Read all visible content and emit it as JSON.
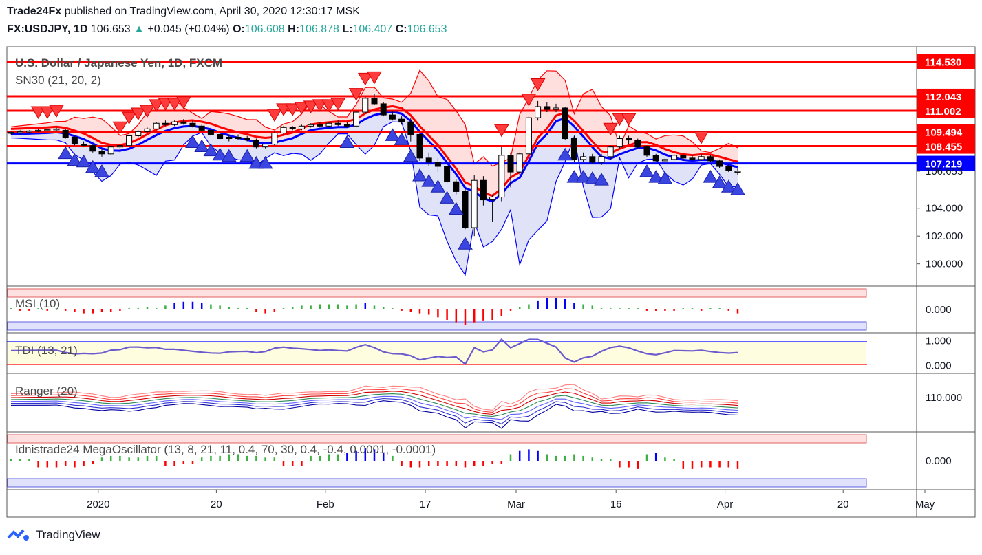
{
  "header": {
    "publisher": "Trade24Fx",
    "published_text": "published on TradingView.com, April 30, 2020 12:30:17 MSK",
    "symbol": "FX:USDJPY, 1D",
    "last": "106.653",
    "change": "+0.045 (+0.04%)",
    "o_label": "O:",
    "o": "106.608",
    "h_label": "H:",
    "h": "106.878",
    "l_label": "L:",
    "l": "106.407",
    "c_label": "C:",
    "c": "106.653"
  },
  "footer": {
    "brand": "TradingView"
  },
  "colors": {
    "red": "#ff0000",
    "blue": "#0000ff",
    "up_green": "#26a69a",
    "tri_red": "#ff3b3b",
    "tri_blue": "#3b45e0",
    "cloud_red": "#ffd6d6",
    "cloud_blue": "#d8dbf5"
  },
  "chart_data": {
    "type": "candlestick",
    "main": {
      "title": "U.S. Dollar / Japanese Yen, 1D, FXCM",
      "indicator": "SN30 (21, 20, 2)",
      "ylim": [
        98.6,
        115.4
      ],
      "y_ticks": [
        "100.000",
        "102.000",
        "104.000",
        "106.653"
      ],
      "levels": [
        {
          "value": 114.53,
          "label": "114.530",
          "color": "#ff0000"
        },
        {
          "value": 112.043,
          "label": "112.043",
          "color": "#ff0000"
        },
        {
          "value": 111.002,
          "label": "111.002",
          "color": "#ff0000"
        },
        {
          "value": 109.494,
          "label": "109.494",
          "color": "#ff0000"
        },
        {
          "value": 108.455,
          "label": "108.455",
          "color": "#ff0000"
        },
        {
          "value": 107.219,
          "label": "107.219",
          "color": "#0000ff"
        }
      ],
      "candles": [
        [
          109.4,
          109.5,
          109.3,
          109.45
        ],
        [
          109.45,
          109.6,
          109.3,
          109.5
        ],
        [
          109.5,
          109.6,
          109.4,
          109.55
        ],
        [
          109.55,
          109.7,
          109.45,
          109.6
        ],
        [
          109.6,
          109.7,
          109.5,
          109.65
        ],
        [
          109.65,
          109.8,
          109.55,
          109.7
        ],
        [
          109.6,
          109.7,
          109.0,
          109.1
        ],
        [
          109.1,
          109.2,
          108.5,
          108.6
        ],
        [
          108.6,
          108.8,
          108.4,
          108.5
        ],
        [
          108.5,
          108.6,
          108.0,
          108.1
        ],
        [
          108.1,
          108.3,
          107.7,
          107.9
        ],
        [
          107.9,
          108.5,
          107.8,
          108.4
        ],
        [
          108.4,
          108.6,
          108.0,
          108.5
        ],
        [
          108.5,
          109.3,
          108.3,
          109.2
        ],
        [
          109.2,
          109.6,
          109.1,
          109.5
        ],
        [
          109.5,
          109.8,
          109.4,
          109.7
        ],
        [
          109.7,
          110.2,
          109.6,
          110.1
        ],
        [
          110.1,
          110.3,
          109.9,
          110.0
        ],
        [
          110.0,
          110.3,
          109.9,
          110.2
        ],
        [
          110.2,
          110.4,
          110.0,
          110.1
        ],
        [
          110.1,
          110.3,
          109.8,
          109.9
        ],
        [
          109.9,
          110.0,
          109.5,
          109.6
        ],
        [
          109.6,
          109.8,
          109.2,
          109.3
        ],
        [
          109.3,
          109.5,
          108.9,
          109.0
        ],
        [
          109.0,
          109.3,
          108.8,
          109.1
        ],
        [
          109.1,
          109.3,
          108.9,
          109.0
        ],
        [
          109.0,
          109.2,
          108.8,
          108.9
        ],
        [
          108.9,
          109.0,
          108.3,
          108.4
        ],
        [
          108.4,
          108.6,
          108.3,
          108.6
        ],
        [
          108.6,
          109.5,
          108.5,
          109.4
        ],
        [
          109.4,
          109.9,
          109.3,
          109.8
        ],
        [
          109.8,
          109.9,
          109.6,
          109.7
        ],
        [
          109.7,
          110.0,
          109.6,
          109.9
        ],
        [
          109.9,
          110.1,
          109.8,
          110.0
        ],
        [
          110.0,
          110.2,
          109.8,
          109.9
        ],
        [
          109.9,
          110.2,
          109.8,
          110.1
        ],
        [
          110.1,
          110.3,
          109.9,
          110.0
        ],
        [
          110.0,
          110.2,
          109.8,
          109.9
        ],
        [
          109.9,
          111.0,
          109.8,
          110.9
        ],
        [
          110.9,
          112.1,
          110.8,
          111.9
        ],
        [
          111.9,
          112.2,
          111.4,
          111.5
        ],
        [
          111.5,
          111.6,
          110.6,
          110.7
        ],
        [
          110.7,
          111.0,
          110.3,
          110.4
        ],
        [
          110.4,
          110.6,
          110.0,
          110.2
        ],
        [
          110.2,
          110.5,
          108.8,
          109.3
        ],
        [
          109.3,
          109.4,
          107.4,
          107.6
        ],
        [
          107.6,
          108.0,
          107.0,
          107.3
        ],
        [
          107.3,
          107.6,
          106.6,
          107.0
        ],
        [
          107.0,
          107.4,
          105.8,
          105.9
        ],
        [
          105.9,
          106.1,
          105.0,
          105.2
        ],
        [
          105.2,
          105.4,
          102.5,
          102.6
        ],
        [
          102.6,
          106.4,
          102.0,
          106.0
        ],
        [
          106.0,
          106.3,
          104.2,
          104.6
        ],
        [
          104.6,
          105.0,
          103.0,
          104.8
        ],
        [
          104.8,
          108.4,
          104.5,
          107.8
        ],
        [
          107.8,
          108.0,
          105.5,
          106.6
        ],
        [
          106.6,
          108.0,
          106.4,
          107.9
        ],
        [
          107.9,
          110.6,
          107.8,
          110.5
        ],
        [
          110.5,
          111.7,
          110.3,
          111.3
        ],
        [
          111.3,
          111.6,
          110.9,
          111.1
        ],
        [
          111.1,
          111.5,
          110.9,
          111.2
        ],
        [
          111.2,
          111.3,
          108.9,
          109.0
        ],
        [
          109.0,
          109.2,
          107.3,
          107.5
        ],
        [
          107.5,
          108.0,
          107.3,
          107.7
        ],
        [
          107.7,
          107.9,
          107.2,
          107.3
        ],
        [
          107.3,
          107.9,
          107.1,
          107.7
        ],
        [
          107.7,
          108.5,
          107.5,
          108.4
        ],
        [
          108.4,
          109.2,
          108.3,
          109.0
        ],
        [
          109.0,
          109.2,
          108.6,
          108.9
        ],
        [
          108.9,
          109.0,
          108.3,
          108.4
        ],
        [
          108.4,
          108.5,
          107.7,
          107.8
        ],
        [
          107.8,
          107.9,
          107.3,
          107.4
        ],
        [
          107.4,
          107.6,
          107.2,
          107.5
        ],
        [
          107.5,
          107.9,
          107.4,
          107.8
        ],
        [
          107.8,
          107.9,
          107.5,
          107.6
        ],
        [
          107.6,
          107.8,
          107.4,
          107.5
        ],
        [
          107.5,
          107.9,
          107.4,
          107.7
        ],
        [
          107.7,
          107.8,
          107.3,
          107.4
        ],
        [
          107.4,
          107.5,
          106.9,
          107.0
        ],
        [
          107.0,
          107.2,
          106.6,
          106.7
        ],
        [
          106.61,
          106.88,
          106.41,
          106.65
        ]
      ]
    },
    "panels": [
      {
        "name": "MSI (10)",
        "ylim": [
          -1.6,
          1.6
        ],
        "y_tick": "0.000",
        "type": "histogram",
        "values": [
          0.1,
          -0.1,
          -0.1,
          0.1,
          -0.1,
          0.1,
          -0.1,
          -0.2,
          -0.3,
          -0.3,
          -0.2,
          -0.2,
          -0.1,
          0.1,
          0.1,
          0.2,
          0.1,
          0.3,
          0.5,
          0.6,
          0.6,
          0.5,
          0.4,
          0.3,
          0.2,
          0.1,
          0.1,
          -0.2,
          -0.3,
          -0.2,
          0.1,
          0.2,
          0.3,
          0.3,
          0.4,
          0.4,
          0.4,
          0.3,
          0.4,
          0.5,
          0.3,
          0.2,
          0.1,
          -0.1,
          -0.2,
          -0.3,
          -0.4,
          -0.6,
          -0.8,
          -1.0,
          -1.2,
          -1.0,
          -0.9,
          -0.8,
          -0.5,
          -0.1,
          0.2,
          0.4,
          0.7,
          0.9,
          0.9,
          0.8,
          0.5,
          0.4,
          0.3,
          0.1,
          0.1,
          0.1,
          0.1,
          0.1,
          -0.1,
          -0.1,
          -0.1,
          -0.1,
          0.1,
          0.1,
          -0.1,
          0.1,
          0.1,
          -0.1,
          -0.3
        ]
      },
      {
        "name": "TDI (13, 21)",
        "ylim": [
          -0.2,
          1.2
        ],
        "y_ticks": [
          "1.000",
          "0.000"
        ],
        "type": "line"
      },
      {
        "name": "Ranger (20)",
        "ylim": [
          101,
          116
        ],
        "y_tick": "110.000",
        "type": "bands"
      },
      {
        "name": "Idnistrade24 MegaOscillator (13, 8, 21, 11, 0.4, 70, 30, 0.4, -0.4, 0.0001, -0.0001)",
        "ylim": [
          -1.6,
          1.6
        ],
        "y_tick": "0.000",
        "type": "histogram",
        "values": [
          0.1,
          0.1,
          0.1,
          -0.4,
          -0.4,
          -0.4,
          -0.3,
          -0.4,
          -0.3,
          -0.2,
          0.2,
          0.3,
          0.3,
          0.2,
          0.2,
          0.3,
          0.3,
          -0.3,
          -0.3,
          -0.2,
          -0.2,
          0.2,
          0.3,
          0.3,
          0.4,
          0.4,
          0.3,
          0.3,
          0.2,
          0.2,
          -0.3,
          -0.3,
          -0.3,
          0.3,
          0.3,
          0.4,
          0.4,
          0.5,
          0.6,
          0.8,
          0.7,
          0.5,
          0.3,
          -0.3,
          -0.4,
          -0.4,
          -0.3,
          -0.3,
          -0.3,
          -0.3,
          -0.4,
          -0.3,
          -0.3,
          -0.2,
          -0.2,
          0.4,
          0.6,
          0.7,
          0.6,
          0.4,
          0.3,
          0.3,
          0.4,
          0.3,
          0.2,
          0.1,
          0.1,
          -0.4,
          -0.4,
          -0.5,
          0.4,
          0.5,
          0.2,
          0.1,
          -0.5,
          -0.5,
          -0.4,
          -0.4,
          -0.4,
          -0.4,
          -0.5
        ]
      }
    ],
    "x_labels": [
      {
        "label": "2020",
        "index": 9
      },
      {
        "label": "20",
        "index": 22
      },
      {
        "label": "Feb",
        "index": 34
      },
      {
        "label": "17",
        "index": 45
      },
      {
        "label": "Mar",
        "index": 55
      },
      {
        "label": "16",
        "index": 66
      },
      {
        "label": "Apr",
        "index": 78
      },
      {
        "label": "20",
        "index": 91
      },
      {
        "label": "May",
        "index": 100
      }
    ]
  }
}
